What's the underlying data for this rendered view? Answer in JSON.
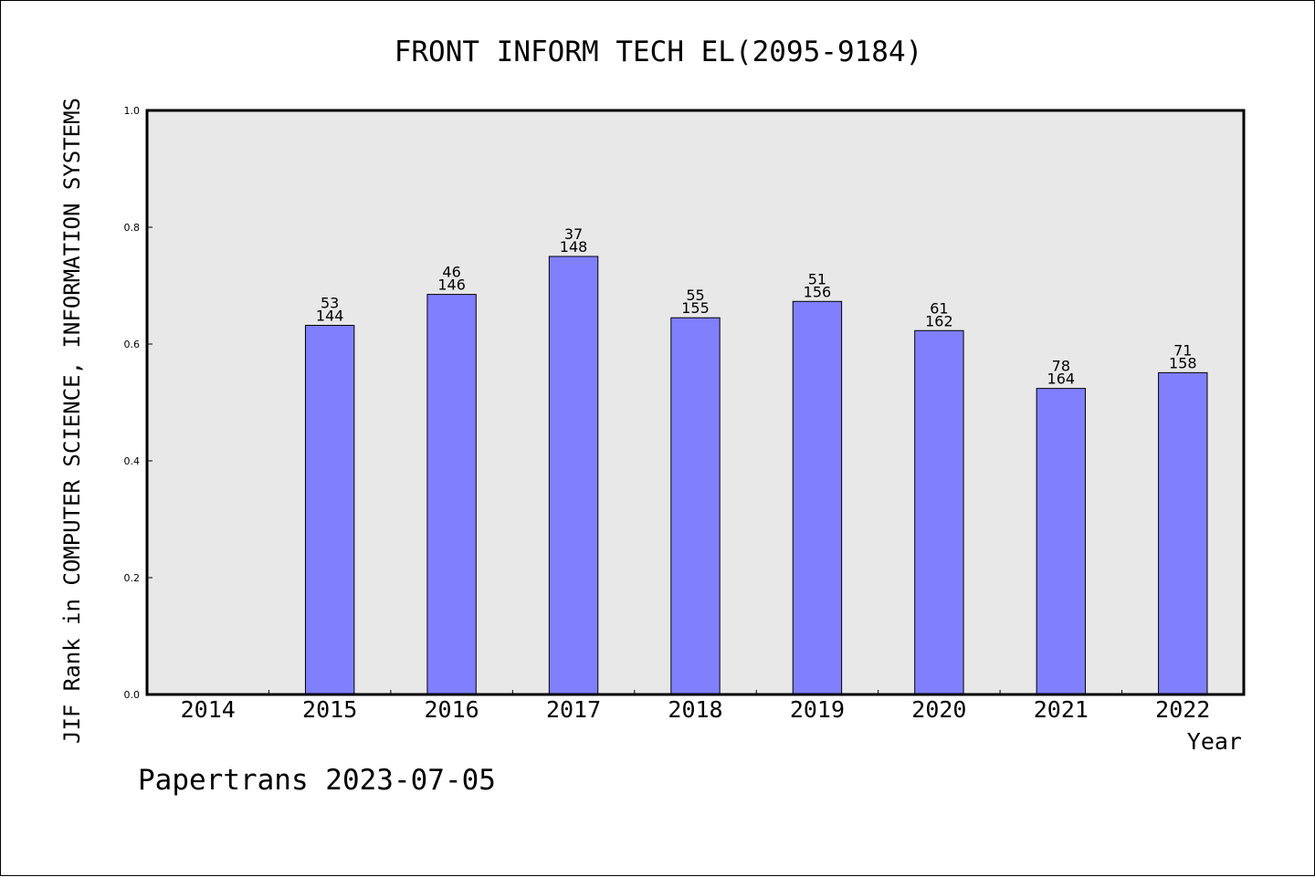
{
  "chart_data": {
    "type": "bar",
    "title": "FRONT INFORM TECH EL(2095-9184)",
    "xlabel": "Year",
    "ylabel": "JIF Rank in COMPUTER SCIENCE, INFORMATION SYSTEMS",
    "ylim": [
      0,
      1.0
    ],
    "yticks": [
      "0.0",
      "0.2",
      "0.4",
      "0.6",
      "0.8",
      "1.0"
    ],
    "categories": [
      "2014",
      "2015",
      "2016",
      "2017",
      "2018",
      "2019",
      "2020",
      "2021",
      "2022"
    ],
    "values": [
      null,
      0.632,
      0.685,
      0.75,
      0.645,
      0.673,
      0.623,
      0.524,
      0.551
    ],
    "rank": [
      null,
      "53",
      "46",
      "37",
      "55",
      "51",
      "61",
      "78",
      "71"
    ],
    "total": [
      null,
      "144",
      "146",
      "148",
      "155",
      "156",
      "162",
      "164",
      "158"
    ],
    "bar_color": "#8080ff",
    "plot_bg": "#e8e8e8",
    "grid": false
  },
  "footer": "Papertrans 2023-07-05"
}
